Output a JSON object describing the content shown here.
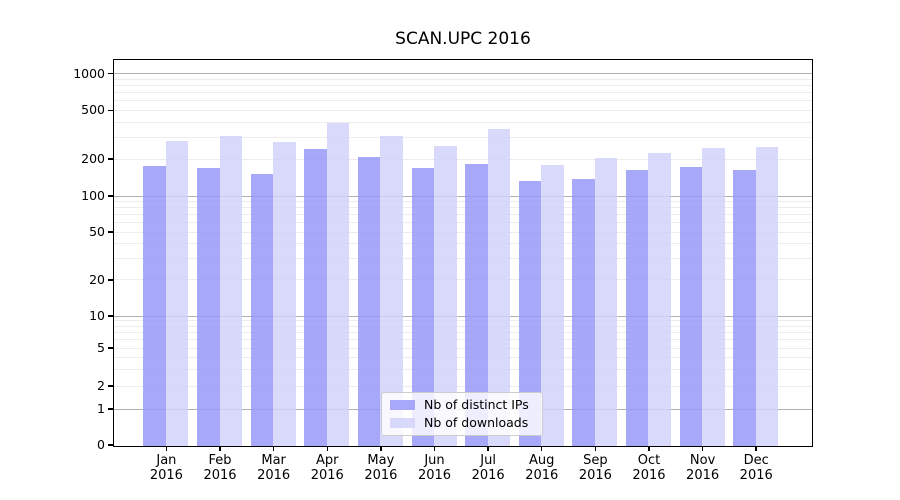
{
  "title": "SCAN.UPC 2016",
  "chart_data": {
    "type": "bar",
    "title": "SCAN.UPC 2016",
    "x_categories": [
      "Jan",
      "Feb",
      "Mar",
      "Apr",
      "May",
      "Jun",
      "Jul",
      "Aug",
      "Sep",
      "Oct",
      "Nov",
      "Dec"
    ],
    "x_year_label": "2016",
    "series": [
      {
        "name": "Nb of distinct IPs",
        "color": "#9999fa",
        "alpha": 0.85,
        "values": [
          178,
          170,
          153,
          243,
          211,
          171,
          184,
          133,
          139,
          164,
          175,
          166
        ]
      },
      {
        "name": "Nb of downloads",
        "color": "#d2d2fa",
        "alpha": 0.85,
        "values": [
          285,
          310,
          280,
          400,
          313,
          259,
          356,
          180,
          205,
          228,
          248,
          252
        ]
      }
    ],
    "y_axis": {
      "scale": "symlog",
      "ticks": [
        0,
        1,
        2,
        5,
        10,
        20,
        50,
        100,
        200,
        500,
        1000
      ],
      "range": [
        0,
        1290
      ]
    },
    "grid": {
      "enabled": true,
      "major_ticks_darker": [
        1,
        10,
        100,
        1000
      ],
      "major_color": "#b0b0b0",
      "minor_color": "#ececec"
    },
    "legend": {
      "position": "lower-center"
    }
  }
}
